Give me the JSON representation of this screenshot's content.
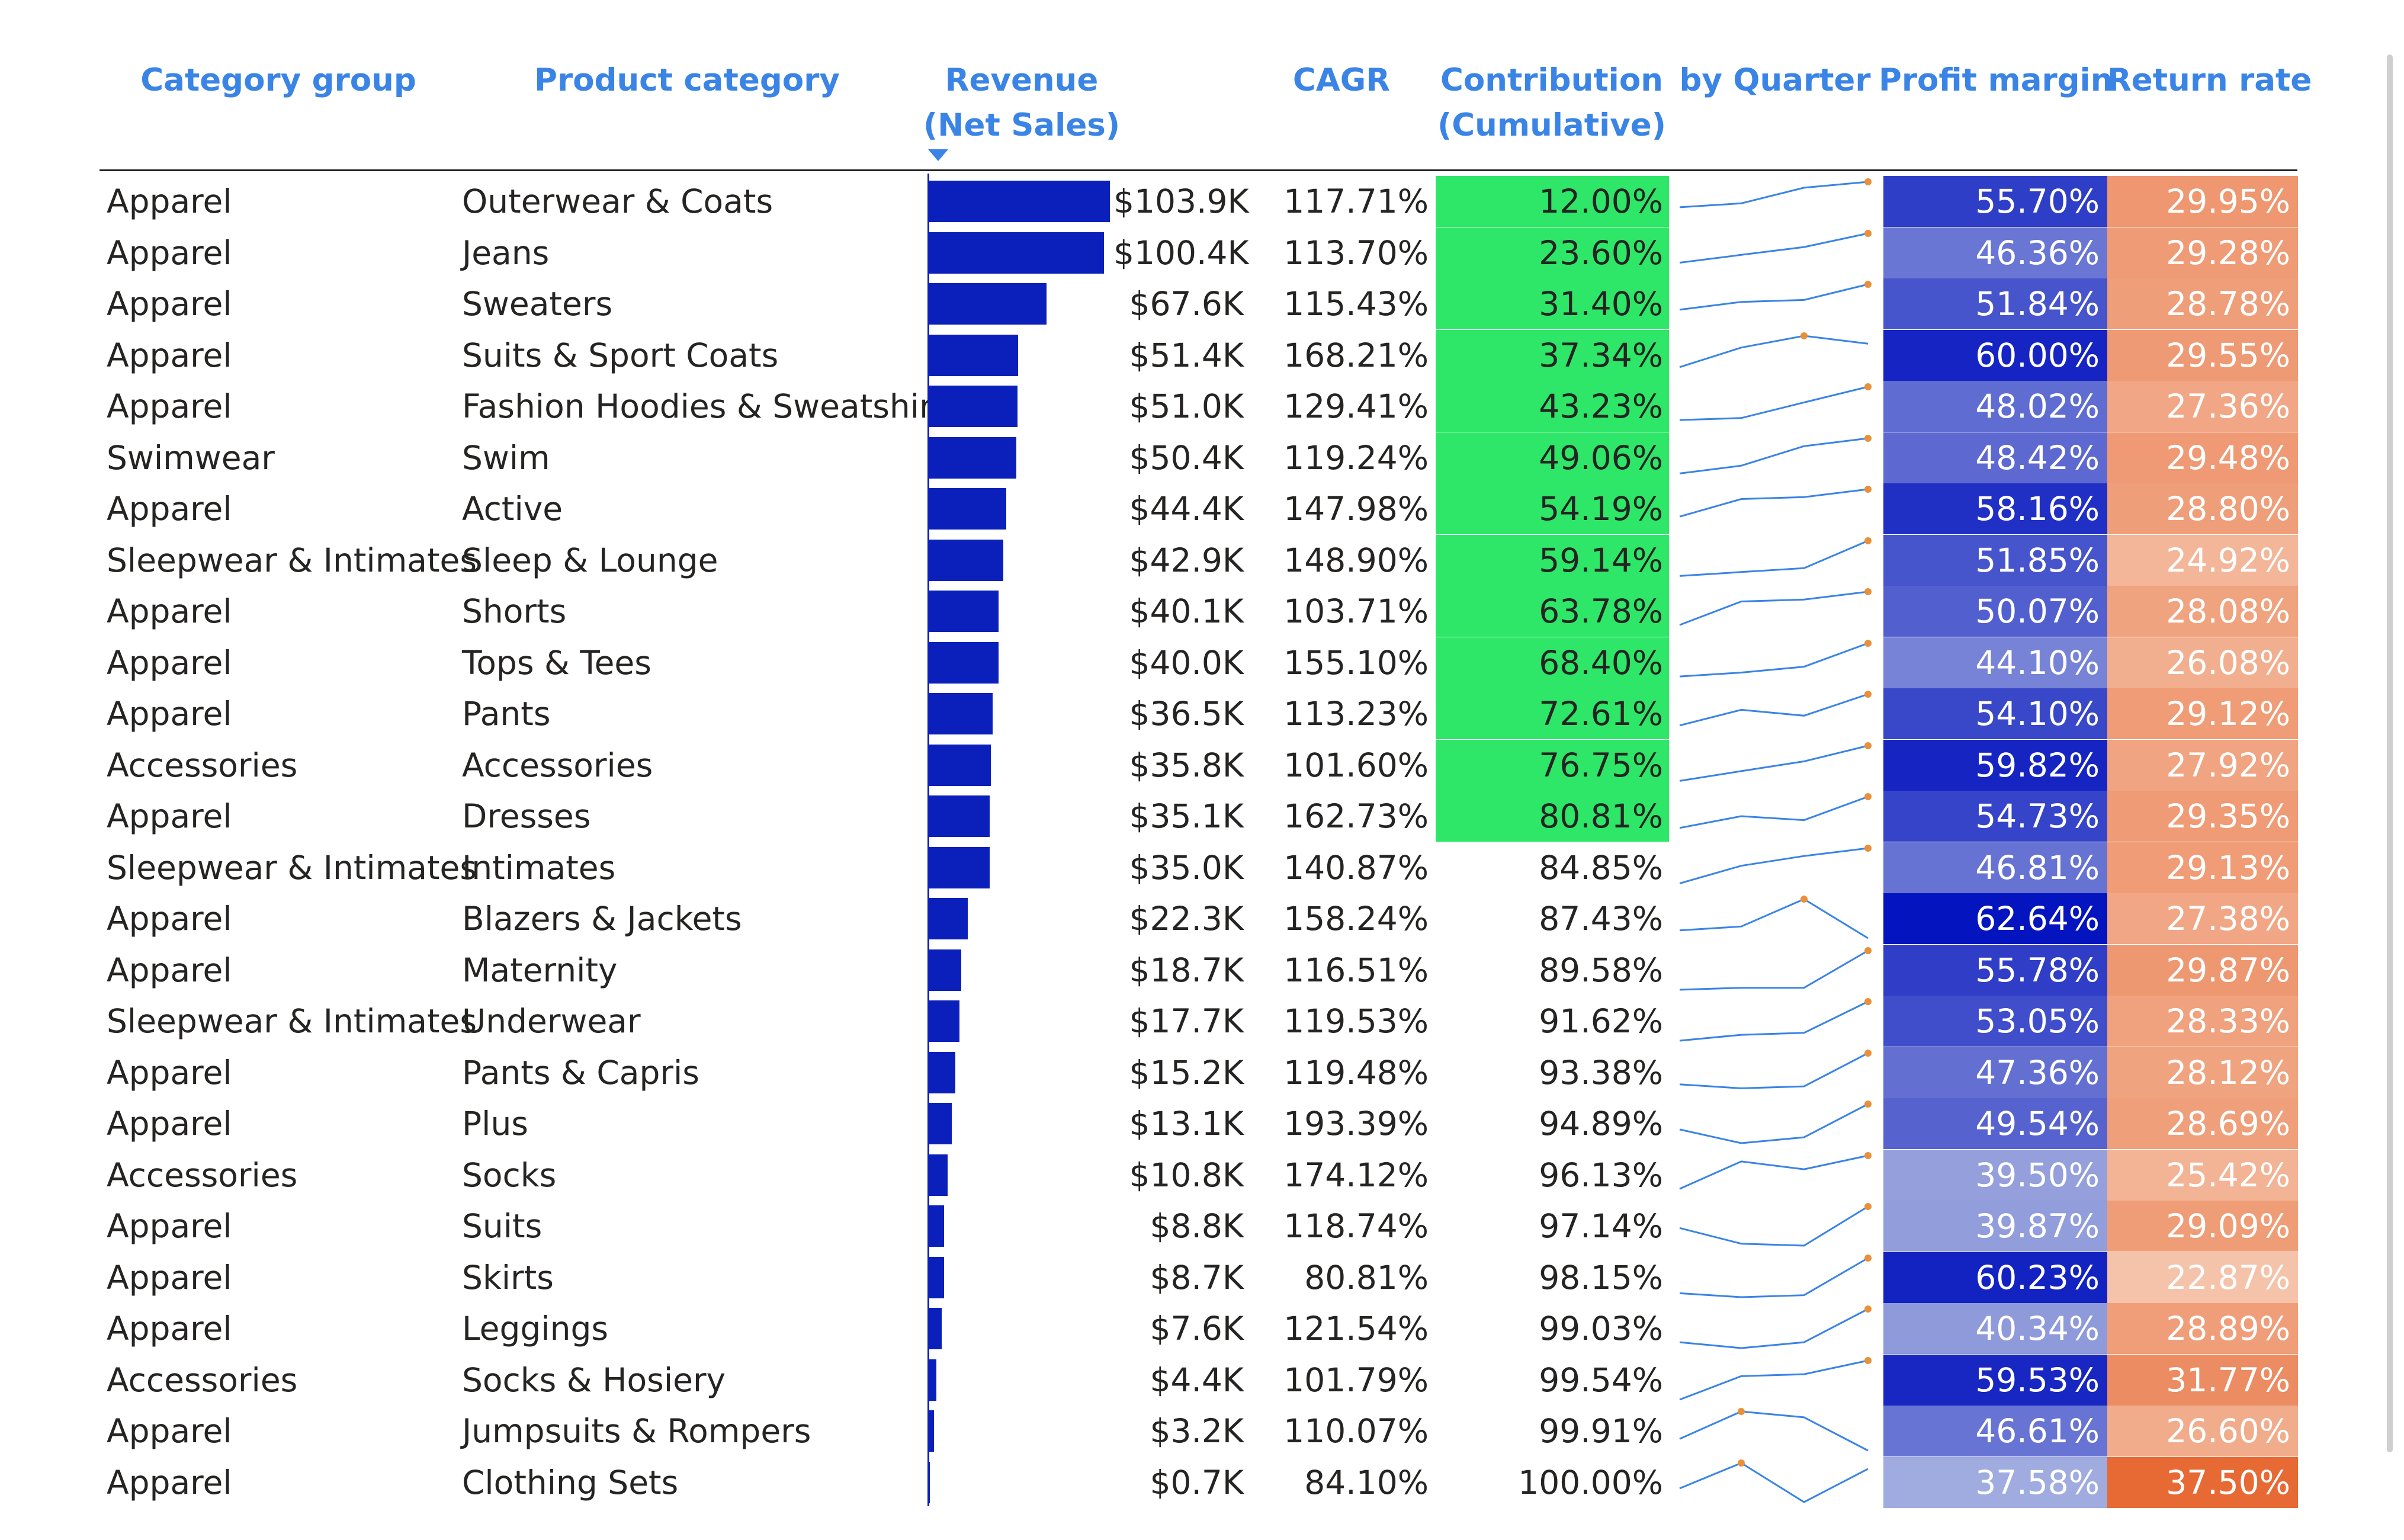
{
  "headers": {
    "category_group": "Category group",
    "product_category": "Product category",
    "revenue_line1": "Revenue",
    "revenue_line2": "(Net Sales)",
    "cagr": "CAGR",
    "contribution_line1": "Contribution",
    "contribution_line2": "(Cumulative)",
    "by_quarter": "by Quarter",
    "profit_margin": "Profit margin",
    "return_rate": "Return rate"
  },
  "colors": {
    "header_text": "#3A84E6",
    "bar": "#0B20BA",
    "contribution_highlight": "#2EE667",
    "sparkline": "#3A84E6",
    "sparkline_marker": "#E8903A"
  },
  "rows": [
    {
      "group": "Apparel",
      "category": "Outerwear & Coats",
      "revenue_value": 103.9,
      "revenue": "$103.9K",
      "cagr": "117.71%",
      "contribution": "12.00%",
      "contribution_highlight": true,
      "quarters": [
        0.35,
        0.45,
        0.85,
        1.0
      ],
      "profit_margin": 55.7,
      "profit_margin_text": "55.70%",
      "return_rate": 29.95,
      "return_rate_text": "29.95%"
    },
    {
      "group": "Apparel",
      "category": "Jeans",
      "revenue_value": 100.4,
      "revenue": "$100.4K",
      "cagr": "113.70%",
      "contribution": "23.60%",
      "contribution_highlight": true,
      "quarters": [
        0.25,
        0.45,
        0.65,
        1.0
      ],
      "profit_margin": 46.36,
      "profit_margin_text": "46.36%",
      "return_rate": 29.28,
      "return_rate_text": "29.28%"
    },
    {
      "group": "Apparel",
      "category": "Sweaters",
      "revenue_value": 67.6,
      "revenue": "$67.6K",
      "cagr": "115.43%",
      "contribution": "31.40%",
      "contribution_highlight": true,
      "quarters": [
        0.35,
        0.55,
        0.6,
        1.0
      ],
      "profit_margin": 51.84,
      "profit_margin_text": "51.84%",
      "return_rate": 28.78,
      "return_rate_text": "28.78%"
    },
    {
      "group": "Apparel",
      "category": "Suits & Sport Coats",
      "revenue_value": 51.4,
      "revenue": "$51.4K",
      "cagr": "168.21%",
      "contribution": "37.34%",
      "contribution_highlight": true,
      "quarters": [
        0.2,
        0.7,
        1.0,
        0.8
      ],
      "profit_margin": 60.0,
      "profit_margin_text": "60.00%",
      "return_rate": 29.55,
      "return_rate_text": "29.55%"
    },
    {
      "group": "Apparel",
      "category": "Fashion Hoodies & Sweatshirts",
      "revenue_value": 51.0,
      "revenue": "$51.0K",
      "cagr": "129.41%",
      "contribution": "43.23%",
      "contribution_highlight": true,
      "quarters": [
        0.15,
        0.2,
        0.6,
        1.0
      ],
      "profit_margin": 48.02,
      "profit_margin_text": "48.02%",
      "return_rate": 27.36,
      "return_rate_text": "27.36%"
    },
    {
      "group": "Swimwear",
      "category": "Swim",
      "revenue_value": 50.4,
      "revenue": "$50.4K",
      "cagr": "119.24%",
      "contribution": "49.06%",
      "contribution_highlight": true,
      "quarters": [
        0.1,
        0.3,
        0.8,
        1.0
      ],
      "profit_margin": 48.42,
      "profit_margin_text": "48.42%",
      "return_rate": 29.48,
      "return_rate_text": "29.48%"
    },
    {
      "group": "Apparel",
      "category": "Active",
      "revenue_value": 44.4,
      "revenue": "$44.4K",
      "cagr": "147.98%",
      "contribution": "54.19%",
      "contribution_highlight": true,
      "quarters": [
        0.3,
        0.75,
        0.8,
        1.0
      ],
      "profit_margin": 58.16,
      "profit_margin_text": "58.16%",
      "return_rate": 28.8,
      "return_rate_text": "28.80%"
    },
    {
      "group": "Sleepwear & Intimates",
      "category": "Sleep & Lounge",
      "revenue_value": 42.9,
      "revenue": "$42.9K",
      "cagr": "148.90%",
      "contribution": "59.14%",
      "contribution_highlight": true,
      "quarters": [
        0.1,
        0.2,
        0.3,
        1.0
      ],
      "profit_margin": 51.85,
      "profit_margin_text": "51.85%",
      "return_rate": 24.92,
      "return_rate_text": "24.92%"
    },
    {
      "group": "Apparel",
      "category": "Shorts",
      "revenue_value": 40.1,
      "revenue": "$40.1K",
      "cagr": "103.71%",
      "contribution": "63.78%",
      "contribution_highlight": true,
      "quarters": [
        0.15,
        0.75,
        0.8,
        1.0
      ],
      "profit_margin": 50.07,
      "profit_margin_text": "50.07%",
      "return_rate": 28.08,
      "return_rate_text": "28.08%"
    },
    {
      "group": "Apparel",
      "category": "Tops & Tees",
      "revenue_value": 40.0,
      "revenue": "$40.0K",
      "cagr": "155.10%",
      "contribution": "68.40%",
      "contribution_highlight": true,
      "quarters": [
        0.15,
        0.25,
        0.4,
        1.0
      ],
      "profit_margin": 44.1,
      "profit_margin_text": "44.10%",
      "return_rate": 26.08,
      "return_rate_text": "26.08%"
    },
    {
      "group": "Apparel",
      "category": "Pants",
      "revenue_value": 36.5,
      "revenue": "$36.5K",
      "cagr": "113.23%",
      "contribution": "72.61%",
      "contribution_highlight": true,
      "quarters": [
        0.2,
        0.6,
        0.45,
        1.0
      ],
      "profit_margin": 54.1,
      "profit_margin_text": "54.10%",
      "return_rate": 29.12,
      "return_rate_text": "29.12%"
    },
    {
      "group": "Accessories",
      "category": "Accessories",
      "revenue_value": 35.8,
      "revenue": "$35.8K",
      "cagr": "101.60%",
      "contribution": "76.75%",
      "contribution_highlight": true,
      "quarters": [
        0.1,
        0.35,
        0.6,
        1.0
      ],
      "profit_margin": 59.82,
      "profit_margin_text": "59.82%",
      "return_rate": 27.92,
      "return_rate_text": "27.92%"
    },
    {
      "group": "Apparel",
      "category": "Dresses",
      "revenue_value": 35.1,
      "revenue": "$35.1K",
      "cagr": "162.73%",
      "contribution": "80.81%",
      "contribution_highlight": true,
      "quarters": [
        0.2,
        0.5,
        0.4,
        1.0
      ],
      "profit_margin": 54.73,
      "profit_margin_text": "54.73%",
      "return_rate": 29.35,
      "return_rate_text": "29.35%"
    },
    {
      "group": "Sleepwear & Intimates",
      "category": "Intimates",
      "revenue_value": 35.0,
      "revenue": "$35.0K",
      "cagr": "140.87%",
      "contribution": "84.85%",
      "contribution_highlight": false,
      "quarters": [
        0.1,
        0.55,
        0.8,
        1.0
      ],
      "profit_margin": 46.81,
      "profit_margin_text": "46.81%",
      "return_rate": 29.13,
      "return_rate_text": "29.13%"
    },
    {
      "group": "Apparel",
      "category": "Blazers & Jackets",
      "revenue_value": 22.3,
      "revenue": "$22.3K",
      "cagr": "158.24%",
      "contribution": "87.43%",
      "contribution_highlight": false,
      "quarters": [
        0.2,
        0.3,
        1.0,
        0.0
      ],
      "profit_margin": 62.64,
      "profit_margin_text": "62.64%",
      "return_rate": 27.38,
      "return_rate_text": "27.38%"
    },
    {
      "group": "Apparel",
      "category": "Maternity",
      "revenue_value": 18.7,
      "revenue": "$18.7K",
      "cagr": "116.51%",
      "contribution": "89.58%",
      "contribution_highlight": false,
      "quarters": [
        0.0,
        0.05,
        0.05,
        1.0
      ],
      "profit_margin": 55.78,
      "profit_margin_text": "55.78%",
      "return_rate": 29.87,
      "return_rate_text": "29.87%"
    },
    {
      "group": "Sleepwear & Intimates",
      "category": "Underwear",
      "revenue_value": 17.7,
      "revenue": "$17.7K",
      "cagr": "119.53%",
      "contribution": "91.62%",
      "contribution_highlight": false,
      "quarters": [
        0.0,
        0.15,
        0.2,
        1.0
      ],
      "profit_margin": 53.05,
      "profit_margin_text": "53.05%",
      "return_rate": 28.33,
      "return_rate_text": "28.33%"
    },
    {
      "group": "Apparel",
      "category": "Pants & Capris",
      "revenue_value": 15.2,
      "revenue": "$15.2K",
      "cagr": "119.48%",
      "contribution": "93.38%",
      "contribution_highlight": false,
      "quarters": [
        0.2,
        0.1,
        0.15,
        1.0
      ],
      "profit_margin": 47.36,
      "profit_margin_text": "47.36%",
      "return_rate": 28.12,
      "return_rate_text": "28.12%"
    },
    {
      "group": "Apparel",
      "category": "Plus",
      "revenue_value": 13.1,
      "revenue": "$13.1K",
      "cagr": "193.39%",
      "contribution": "94.89%",
      "contribution_highlight": false,
      "quarters": [
        0.35,
        0.0,
        0.15,
        1.0
      ],
      "profit_margin": 49.54,
      "profit_margin_text": "49.54%",
      "return_rate": 28.69,
      "return_rate_text": "28.69%"
    },
    {
      "group": "Accessories",
      "category": "Socks",
      "revenue_value": 10.8,
      "revenue": "$10.8K",
      "cagr": "174.12%",
      "contribution": "96.13%",
      "contribution_highlight": false,
      "quarters": [
        0.15,
        0.85,
        0.65,
        1.0
      ],
      "profit_margin": 39.5,
      "profit_margin_text": "39.50%",
      "return_rate": 25.42,
      "return_rate_text": "25.42%"
    },
    {
      "group": "Apparel",
      "category": "Suits",
      "revenue_value": 8.8,
      "revenue": "$8.8K",
      "cagr": "118.74%",
      "contribution": "97.14%",
      "contribution_highlight": false,
      "quarters": [
        0.45,
        0.05,
        0.0,
        1.0
      ],
      "profit_margin": 39.87,
      "profit_margin_text": "39.87%",
      "return_rate": 29.09,
      "return_rate_text": "29.09%"
    },
    {
      "group": "Apparel",
      "category": "Skirts",
      "revenue_value": 8.7,
      "revenue": "$8.7K",
      "cagr": "80.81%",
      "contribution": "98.15%",
      "contribution_highlight": false,
      "quarters": [
        0.1,
        0.0,
        0.05,
        1.0
      ],
      "profit_margin": 60.23,
      "profit_margin_text": "60.23%",
      "return_rate": 22.87,
      "return_rate_text": "22.87%"
    },
    {
      "group": "Apparel",
      "category": "Leggings",
      "revenue_value": 7.6,
      "revenue": "$7.6K",
      "cagr": "121.54%",
      "contribution": "99.03%",
      "contribution_highlight": false,
      "quarters": [
        0.15,
        0.0,
        0.15,
        1.0
      ],
      "profit_margin": 40.34,
      "profit_margin_text": "40.34%",
      "return_rate": 28.89,
      "return_rate_text": "28.89%"
    },
    {
      "group": "Accessories",
      "category": "Socks & Hosiery",
      "revenue_value": 4.4,
      "revenue": "$4.4K",
      "cagr": "101.79%",
      "contribution": "99.54%",
      "contribution_highlight": false,
      "quarters": [
        0.0,
        0.6,
        0.65,
        1.0
      ],
      "profit_margin": 59.53,
      "profit_margin_text": "59.53%",
      "return_rate": 31.77,
      "return_rate_text": "31.77%"
    },
    {
      "group": "Apparel",
      "category": "Jumpsuits & Rompers",
      "revenue_value": 3.2,
      "revenue": "$3.2K",
      "cagr": "110.07%",
      "contribution": "99.91%",
      "contribution_highlight": false,
      "quarters": [
        0.3,
        1.0,
        0.85,
        0.0
      ],
      "profit_margin": 46.61,
      "profit_margin_text": "46.61%",
      "return_rate": 26.6,
      "return_rate_text": "26.60%"
    },
    {
      "group": "Apparel",
      "category": "Clothing Sets",
      "revenue_value": 0.7,
      "revenue": "$0.7K",
      "cagr": "84.10%",
      "contribution": "100.00%",
      "contribution_highlight": false,
      "quarters": [
        0.35,
        1.0,
        0.0,
        0.85
      ],
      "profit_margin": 37.58,
      "profit_margin_text": "37.58%",
      "return_rate": 37.5,
      "return_rate_text": "37.50%"
    }
  ]
}
